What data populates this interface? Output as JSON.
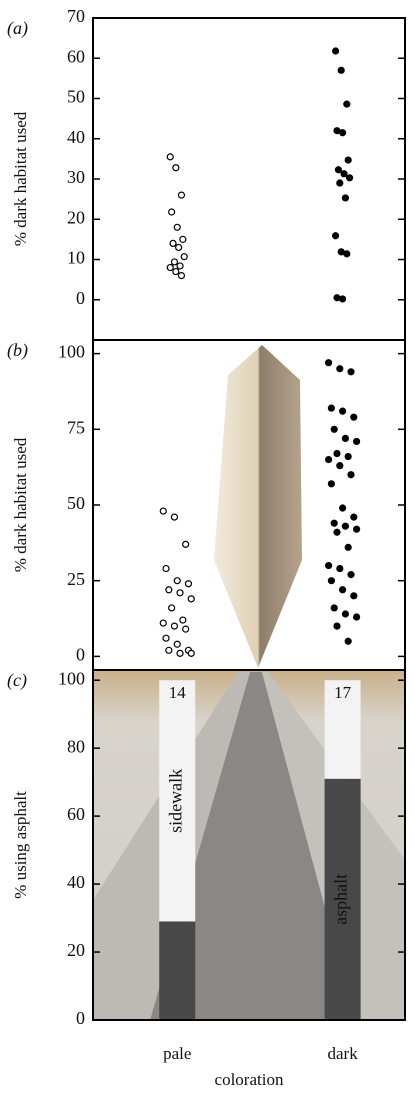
{
  "chart_data": [
    {
      "type": "scatter",
      "panel_label": "(a)",
      "ylabel": "% dark habitat used",
      "ylim": [
        -10,
        70
      ],
      "yticks": [
        0,
        10,
        20,
        30,
        40,
        50,
        60,
        70
      ],
      "series": [
        {
          "marker": "open",
          "values": [
            35.5,
            32.8,
            26,
            21.8,
            18,
            15,
            14,
            13,
            10.7,
            9.4,
            8.4,
            8,
            7,
            6
          ]
        },
        {
          "marker": "filled",
          "values": [
            61.8,
            57,
            48.6,
            42,
            41.5,
            34.7,
            32.3,
            31.3,
            30.3,
            29,
            25.3,
            15.9,
            11.9,
            11.4,
            0.5,
            0.2
          ]
        }
      ]
    },
    {
      "type": "scatter",
      "panel_label": "(b)",
      "ylabel": "% dark habitat used",
      "ylim": [
        -4.5,
        104.5
      ],
      "yticks": [
        0,
        25,
        50,
        75,
        100
      ],
      "series": [
        {
          "marker": "open",
          "values": [
            48,
            46,
            37,
            29,
            25,
            24,
            22,
            21,
            19,
            16,
            12,
            11,
            10,
            9,
            6,
            4,
            2,
            2,
            1,
            1
          ]
        },
        {
          "marker": "filled",
          "values": [
            97,
            95,
            94,
            82,
            81,
            79,
            75,
            72,
            71,
            67,
            66,
            65,
            63,
            60,
            57,
            49,
            46,
            44,
            43,
            42,
            41,
            36,
            30,
            29,
            27,
            25,
            22,
            20,
            16,
            14,
            13,
            10,
            5
          ]
        }
      ]
    },
    {
      "type": "stacked_bar",
      "panel_label": "(c)",
      "ylabel": "% using asphalt",
      "xlabel": "coloration",
      "categories": [
        "pale",
        "dark"
      ],
      "n": [
        14,
        17
      ],
      "ylim": [
        0,
        103
      ],
      "yticks": [
        0,
        20,
        40,
        60,
        80,
        100
      ],
      "series": [
        {
          "name": "asphalt",
          "color": "#484848",
          "values": [
            29,
            71
          ]
        },
        {
          "name": "sidewalk",
          "color": "#f3f3f3",
          "values": [
            71,
            29
          ]
        }
      ]
    }
  ]
}
